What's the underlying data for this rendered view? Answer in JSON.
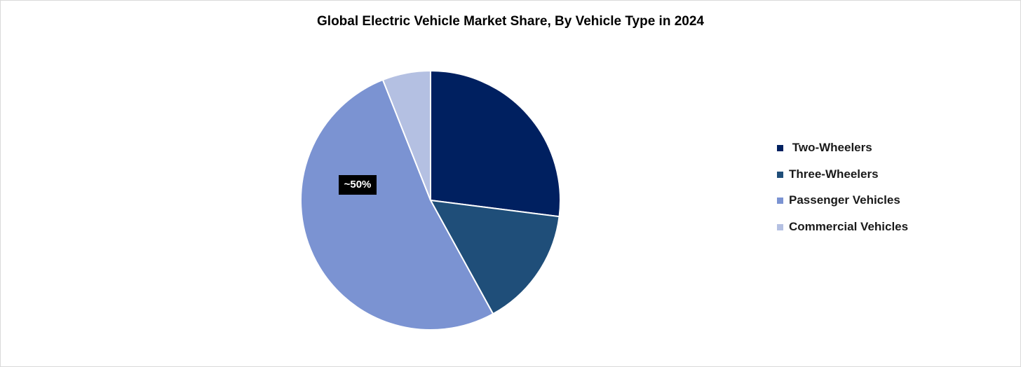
{
  "chart_data": {
    "type": "pie",
    "title": "Global Electric Vehicle Market Share, By Vehicle Type in 2024",
    "slices": [
      {
        "name": " Two-Wheelers",
        "value": 27,
        "color": "#002060"
      },
      {
        "name": "Three-Wheelers",
        "value": 15,
        "color": "#1f4e79"
      },
      {
        "name": "Passenger Vehicles",
        "value": 52,
        "color": "#7b93d2"
      },
      {
        "name": "Commercial Vehicles",
        "value": 6,
        "color": "#b4c0e2"
      }
    ],
    "data_labels": [
      {
        "series": "Passenger Vehicles",
        "text": "~50%"
      }
    ],
    "legend_position": "right",
    "start_angle_deg": 0,
    "direction": "clockwise"
  }
}
